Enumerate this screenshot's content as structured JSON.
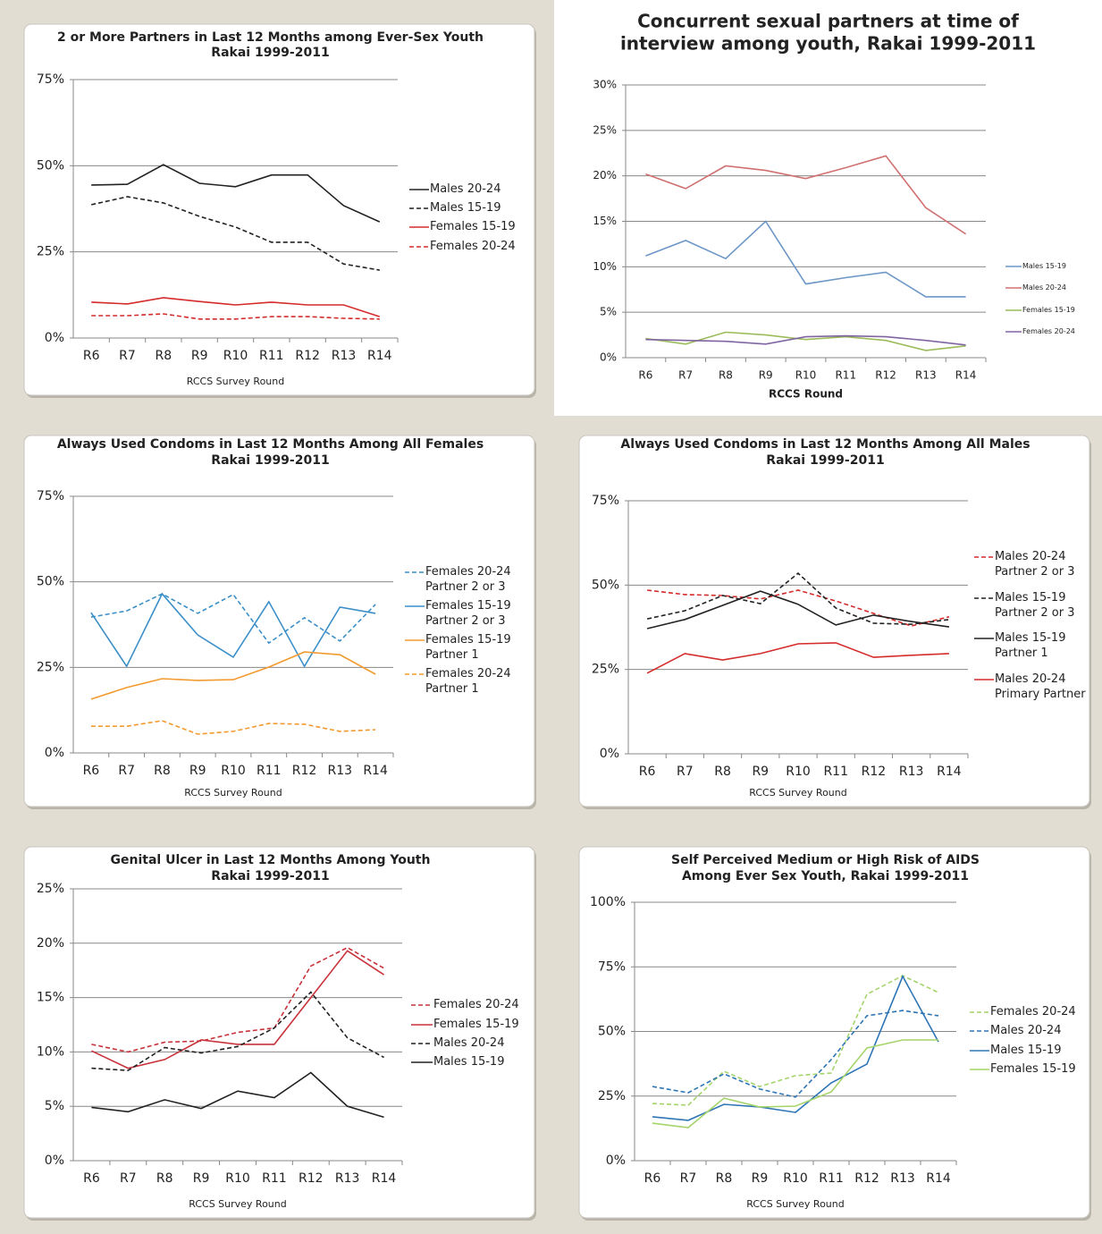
{
  "chart_data": [
    {
      "type": "line",
      "title": [
        "2 or More Partners in Last 12 Months among Ever-Sex Youth",
        "Rakai 1999-2011"
      ],
      "x_label": "RCCS Survey Round",
      "categories": [
        "R6",
        "R7",
        "R8",
        "R9",
        "R10",
        "R11",
        "R12",
        "R13",
        "R14"
      ],
      "ylim": [
        0,
        75
      ],
      "yticks": [
        {
          "value": 0,
          "label": "0%"
        },
        {
          "value": 25,
          "label": "25%"
        },
        {
          "value": 50,
          "label": "50%"
        },
        {
          "value": 75,
          "label": "75%"
        }
      ],
      "grid": true,
      "legend": "right",
      "series": [
        {
          "name": "Males 20-24",
          "color": "#222222",
          "dashed": false,
          "values": [
            44.4,
            44.6,
            50.3,
            44.9,
            43.9,
            47.3,
            47.3,
            38.4,
            33.7
          ]
        },
        {
          "name": "Males 15-19",
          "color": "#222222",
          "dashed": true,
          "values": [
            38.7,
            41.0,
            39.2,
            35.3,
            32.2,
            27.8,
            27.8,
            21.5,
            19.7
          ]
        },
        {
          "name": "Females 15-19",
          "color": "#d42b2b",
          "dashed": false,
          "values": [
            10.4,
            9.9,
            11.7,
            10.6,
            9.6,
            10.4,
            9.6,
            9.6,
            6.2
          ]
        },
        {
          "name": "Females 20-24",
          "color": "#d42b2b",
          "dashed": true,
          "values": [
            6.5,
            6.5,
            7.0,
            5.5,
            5.5,
            6.2,
            6.2,
            5.7,
            5.5
          ]
        }
      ]
    },
    {
      "type": "line",
      "title": [
        "Concurrent sexual partners at time of",
        "interview among youth, Rakai 1999-2011"
      ],
      "x_label": "RCCS Round",
      "categories": [
        "R6",
        "R7",
        "R8",
        "R9",
        "R10",
        "R11",
        "R12",
        "R13",
        "R14"
      ],
      "ylim": [
        0,
        30
      ],
      "yticks": [
        {
          "value": 0,
          "label": "0%"
        },
        {
          "value": 5,
          "label": "5%"
        },
        {
          "value": 10,
          "label": "10%"
        },
        {
          "value": 15,
          "label": "15%"
        },
        {
          "value": 20,
          "label": "20%"
        },
        {
          "value": 25,
          "label": "25%"
        },
        {
          "value": 30,
          "label": "30%"
        }
      ],
      "grid": true,
      "legend": "right",
      "series": [
        {
          "name": "Males 15-19",
          "color": "#6d97c7",
          "dashed": false,
          "values": [
            11.2,
            12.9,
            10.9,
            15.0,
            8.1,
            8.8,
            9.4,
            6.7,
            6.7
          ]
        },
        {
          "name": "Males 20-24",
          "color": "#d07070",
          "dashed": false,
          "values": [
            20.2,
            18.6,
            21.1,
            20.6,
            19.7,
            20.9,
            22.2,
            16.5,
            13.6
          ]
        },
        {
          "name": "Females 15-19",
          "color": "#9bbb59",
          "dashed": false,
          "values": [
            2.1,
            1.5,
            2.8,
            2.5,
            2.0,
            2.3,
            1.9,
            0.8,
            1.3
          ]
        },
        {
          "name": "Females 20-24",
          "color": "#8064a2",
          "dashed": false,
          "values": [
            2.0,
            1.9,
            1.8,
            1.5,
            2.3,
            2.4,
            2.3,
            1.9,
            1.4
          ]
        }
      ]
    },
    {
      "type": "line",
      "title": [
        "Always Used Condoms in Last 12 Months Among All Females",
        "Rakai 1999-2011"
      ],
      "x_label": "RCCS Survey Round",
      "categories": [
        "R6",
        "R7",
        "R8",
        "R9",
        "R10",
        "R11",
        "R12",
        "R13",
        "R14"
      ],
      "ylim": [
        0,
        75
      ],
      "yticks": [
        {
          "value": 0,
          "label": "0%"
        },
        {
          "value": 25,
          "label": "25%"
        },
        {
          "value": 50,
          "label": "50%"
        },
        {
          "value": 75,
          "label": "75%"
        }
      ],
      "grid": true,
      "legend": "right",
      "series": [
        {
          "name": "Females 20-24 Partner 2 or 3",
          "color": "#3b8fc8",
          "dashed": true,
          "values": [
            39.7,
            41.5,
            46.5,
            40.8,
            46.3,
            32.1,
            39.5,
            32.7,
            43.4
          ]
        },
        {
          "name": "Females 15-19 Partner 2 or 3",
          "color": "#3b8fc8",
          "dashed": false,
          "values": [
            41.0,
            25.3,
            46.5,
            34.5,
            28.0,
            44.2,
            25.3,
            42.6,
            40.8
          ]
        },
        {
          "name": "Females 15-19 Partner 1",
          "color": "#f39a2e",
          "dashed": false,
          "values": [
            15.7,
            19.1,
            21.7,
            21.2,
            21.4,
            25.1,
            29.5,
            28.7,
            23.0
          ]
        },
        {
          "name": "Females 20-24 Partner 1",
          "color": "#f39a2e",
          "dashed": true,
          "values": [
            7.8,
            7.8,
            9.4,
            5.5,
            6.3,
            8.6,
            8.4,
            6.3,
            6.8
          ]
        }
      ]
    },
    {
      "type": "line",
      "title": [
        "Always Used Condoms in Last 12 Months Among All Males",
        "Rakai 1999-2011"
      ],
      "x_label": "RCCS Survey Round",
      "categories": [
        "R6",
        "R7",
        "R8",
        "R9",
        "R10",
        "R11",
        "R12",
        "R13",
        "R14"
      ],
      "ylim": [
        0,
        75
      ],
      "yticks": [
        {
          "value": 0,
          "label": "0%"
        },
        {
          "value": 25,
          "label": "25%"
        },
        {
          "value": 50,
          "label": "50%"
        },
        {
          "value": 75,
          "label": "75%"
        }
      ],
      "grid": true,
      "legend": "right",
      "series": [
        {
          "name": "Males 20-24 Partner 2 or 3",
          "color": "#d42b2b",
          "dashed": true,
          "values": [
            48.5,
            47.2,
            46.9,
            45.9,
            48.5,
            45.3,
            41.6,
            37.9,
            40.6
          ]
        },
        {
          "name": "Males 15-19 Partner 2 or 3",
          "color": "#222222",
          "dashed": true,
          "values": [
            40.0,
            42.4,
            46.9,
            44.5,
            53.5,
            43.2,
            38.7,
            38.4,
            39.8
          ]
        },
        {
          "name": "Males 15-19 Partner 1",
          "color": "#222222",
          "dashed": false,
          "values": [
            37.1,
            39.8,
            44.0,
            48.2,
            44.3,
            38.2,
            41.1,
            39.2,
            37.6
          ]
        },
        {
          "name": "Males 20-24 Primary Partner",
          "color": "#d42b2b",
          "dashed": false,
          "values": [
            23.9,
            29.7,
            27.8,
            29.7,
            32.6,
            32.9,
            28.6,
            29.2,
            29.7
          ]
        }
      ]
    },
    {
      "type": "line",
      "title": [
        "Genital Ulcer in Last 12 Months Among Youth",
        "Rakai 1999-2011"
      ],
      "x_label": "RCCS Survey Round",
      "categories": [
        "R6",
        "R7",
        "R8",
        "R9",
        "R10",
        "R11",
        "R12",
        "R13",
        "R14"
      ],
      "ylim": [
        0,
        25
      ],
      "yticks": [
        {
          "value": 0,
          "label": "0%"
        },
        {
          "value": 5,
          "label": "5%"
        },
        {
          "value": 10,
          "label": "10%"
        },
        {
          "value": 15,
          "label": "15%"
        },
        {
          "value": 20,
          "label": "20%"
        },
        {
          "value": 25,
          "label": "25%"
        }
      ],
      "grid": true,
      "legend": "right",
      "series": [
        {
          "name": "Females 20-24",
          "color": "#c8323a",
          "dashed": true,
          "values": [
            10.7,
            10.0,
            10.9,
            11.0,
            11.8,
            12.2,
            17.9,
            19.6,
            17.7
          ]
        },
        {
          "name": "Females 15-19",
          "color": "#c8323a",
          "dashed": false,
          "values": [
            10.1,
            8.5,
            9.3,
            11.1,
            10.7,
            10.7,
            15.0,
            19.3,
            17.1
          ]
        },
        {
          "name": "Males 20-24",
          "color": "#222222",
          "dashed": true,
          "values": [
            8.5,
            8.3,
            10.4,
            9.9,
            10.5,
            12.2,
            15.5,
            11.3,
            9.5
          ]
        },
        {
          "name": "Males 15-19",
          "color": "#222222",
          "dashed": false,
          "values": [
            4.9,
            4.5,
            5.6,
            4.8,
            6.4,
            5.8,
            8.1,
            5.0,
            4.0
          ]
        }
      ]
    },
    {
      "type": "line",
      "title": [
        "Self Perceived Medium or High Risk of AIDS",
        "Among Ever Sex Youth, Rakai 1999-2011"
      ],
      "x_label": "RCCS Survey Round",
      "categories": [
        "R6",
        "R7",
        "R8",
        "R9",
        "R10",
        "R11",
        "R12",
        "R13",
        "R14"
      ],
      "ylim": [
        0,
        100
      ],
      "yticks": [
        {
          "value": 0,
          "label": "0%"
        },
        {
          "value": 25,
          "label": "25%"
        },
        {
          "value": 50,
          "label": "50%"
        },
        {
          "value": 75,
          "label": "75%"
        },
        {
          "value": 100,
          "label": "100%"
        }
      ],
      "grid": true,
      "legend": "right",
      "series": [
        {
          "name": "Females 20-24",
          "color": "#a5d46a",
          "dashed": true,
          "values": [
            22.1,
            21.5,
            34.6,
            28.7,
            32.9,
            33.9,
            64.4,
            71.6,
            65.1
          ]
        },
        {
          "name": "Males 20-24",
          "color": "#2e75b6",
          "dashed": true,
          "values": [
            28.7,
            26.3,
            33.6,
            27.7,
            24.6,
            39.1,
            56.1,
            58.1,
            56.1
          ]
        },
        {
          "name": "Males 15-19",
          "color": "#2e75b6",
          "dashed": false,
          "values": [
            17.0,
            15.6,
            21.8,
            20.8,
            18.7,
            30.1,
            37.4,
            71.3,
            46.0
          ]
        },
        {
          "name": "Females 15-19",
          "color": "#a5d46a",
          "dashed": false,
          "values": [
            14.5,
            12.8,
            24.2,
            20.8,
            21.1,
            26.6,
            43.6,
            46.7,
            46.7
          ]
        }
      ]
    }
  ]
}
